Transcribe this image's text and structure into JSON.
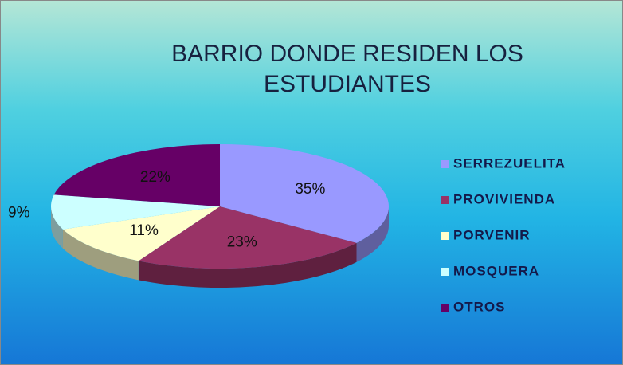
{
  "chart_data": {
    "type": "pie",
    "title": "BARRIO DONDE RESIDEN LOS ESTUDIANTES",
    "categories": [
      "SERREZUELITA",
      "PROVIVIENDA",
      "PORVENIR",
      "MOSQUERA",
      "OTROS"
    ],
    "values": [
      35,
      23,
      11,
      9,
      22
    ],
    "value_labels": [
      "35%",
      "23%",
      "11%",
      "9%",
      "22%"
    ],
    "colors": [
      "#9999ff",
      "#993366",
      "#ffffcc",
      "#ccffff",
      "#660066"
    ],
    "legend": "right"
  }
}
